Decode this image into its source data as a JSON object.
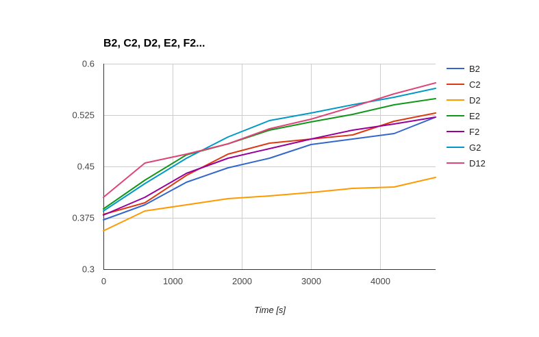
{
  "chart_data": {
    "type": "line",
    "title": "B2, C2, D2, E2, F2...",
    "xlabel": "Time [s]",
    "ylabel": "",
    "xlim": [
      0,
      4800
    ],
    "ylim": [
      0.3,
      0.6
    ],
    "xticks": [
      0,
      1000,
      2000,
      3000,
      4000
    ],
    "xtick_labels": [
      "0",
      "1000",
      "2000",
      "3000",
      "4000"
    ],
    "yticks": [
      0.3,
      0.375,
      0.45,
      0.525,
      0.6
    ],
    "ytick_labels": [
      "0.3",
      "0.375",
      "0.45",
      "0.525",
      "0.6"
    ],
    "grid": true,
    "legend_position": "right",
    "x": [
      0,
      600,
      1200,
      1800,
      2400,
      3000,
      3600,
      4200,
      4800
    ],
    "series": [
      {
        "name": "B2",
        "color": "#3366cc",
        "values": [
          0.372,
          0.394,
          0.427,
          0.448,
          0.462,
          0.482,
          0.49,
          0.498,
          0.522
        ]
      },
      {
        "name": "C2",
        "color": "#dc3912",
        "values": [
          0.38,
          0.397,
          0.437,
          0.468,
          0.484,
          0.49,
          0.496,
          0.516,
          0.528
        ]
      },
      {
        "name": "D2",
        "color": "#ff9900",
        "values": [
          0.356,
          0.385,
          0.394,
          0.403,
          0.407,
          0.412,
          0.418,
          0.42,
          0.434
        ]
      },
      {
        "name": "E2",
        "color": "#109618",
        "values": [
          0.388,
          0.43,
          0.467,
          0.483,
          0.503,
          0.515,
          0.526,
          0.54,
          0.549
        ]
      },
      {
        "name": "F2",
        "color": "#990099",
        "values": [
          0.379,
          0.405,
          0.44,
          0.462,
          0.476,
          0.49,
          0.503,
          0.512,
          0.522
        ]
      },
      {
        "name": "G2",
        "color": "#0099c6",
        "values": [
          0.385,
          0.425,
          0.462,
          0.493,
          0.517,
          0.528,
          0.54,
          0.551,
          0.564
        ]
      },
      {
        "name": "D12",
        "color": "#dd4477",
        "values": [
          0.405,
          0.455,
          0.468,
          0.483,
          0.505,
          0.519,
          0.537,
          0.556,
          0.572
        ]
      }
    ]
  }
}
